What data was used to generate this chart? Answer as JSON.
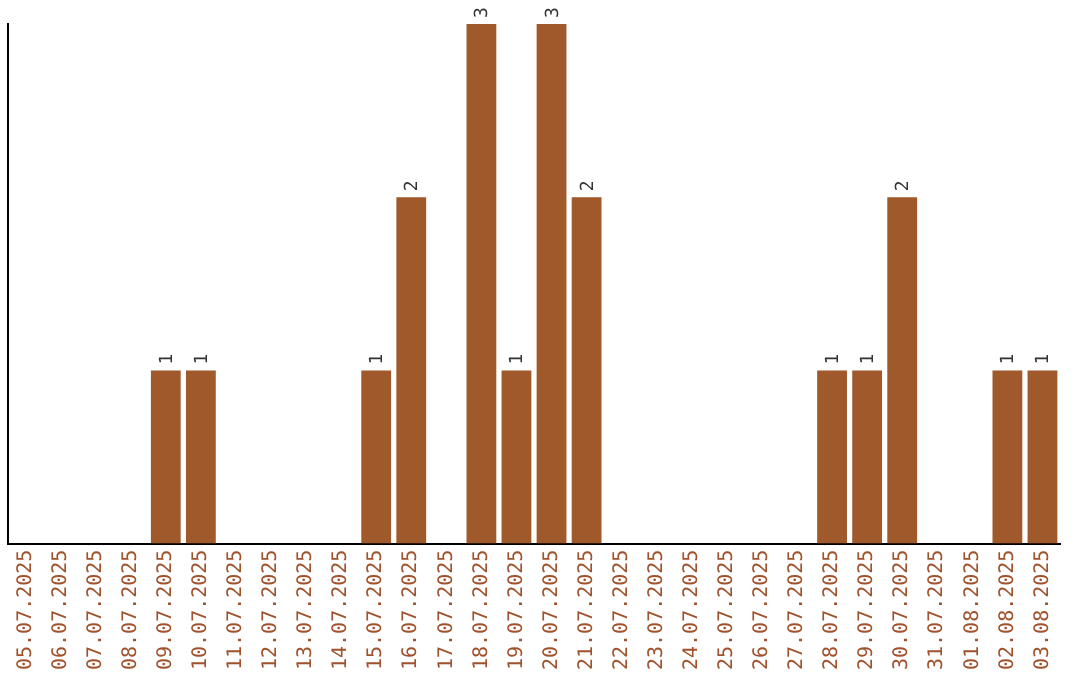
{
  "chart_data": {
    "type": "bar",
    "categories": [
      "05.07.2025",
      "06.07.2025",
      "07.07.2025",
      "08.07.2025",
      "09.07.2025",
      "10.07.2025",
      "11.07.2025",
      "12.07.2025",
      "13.07.2025",
      "14.07.2025",
      "15.07.2025",
      "16.07.2025",
      "17.07.2025",
      "18.07.2025",
      "19.07.2025",
      "20.07.2025",
      "21.07.2025",
      "22.07.2025",
      "23.07.2025",
      "24.07.2025",
      "25.07.2025",
      "26.07.2025",
      "27.07.2025",
      "28.07.2025",
      "29.07.2025",
      "30.07.2025",
      "31.07.2025",
      "01.08.2025",
      "02.08.2025",
      "03.08.2025"
    ],
    "values": [
      0,
      0,
      0,
      0,
      1,
      1,
      0,
      0,
      0,
      0,
      1,
      2,
      0,
      3,
      1,
      3,
      2,
      0,
      0,
      0,
      0,
      0,
      0,
      1,
      1,
      2,
      0,
      0,
      1,
      1
    ],
    "value_labels": [
      null,
      null,
      null,
      null,
      "1",
      "1",
      null,
      null,
      null,
      null,
      "1",
      "2",
      null,
      "3",
      "1",
      "3",
      "2",
      null,
      null,
      null,
      null,
      null,
      null,
      "1",
      "1",
      "2",
      null,
      null,
      "1",
      "1"
    ],
    "color": "#a0592a",
    "grid": false,
    "legend": false,
    "tick_labels": "x"
  }
}
